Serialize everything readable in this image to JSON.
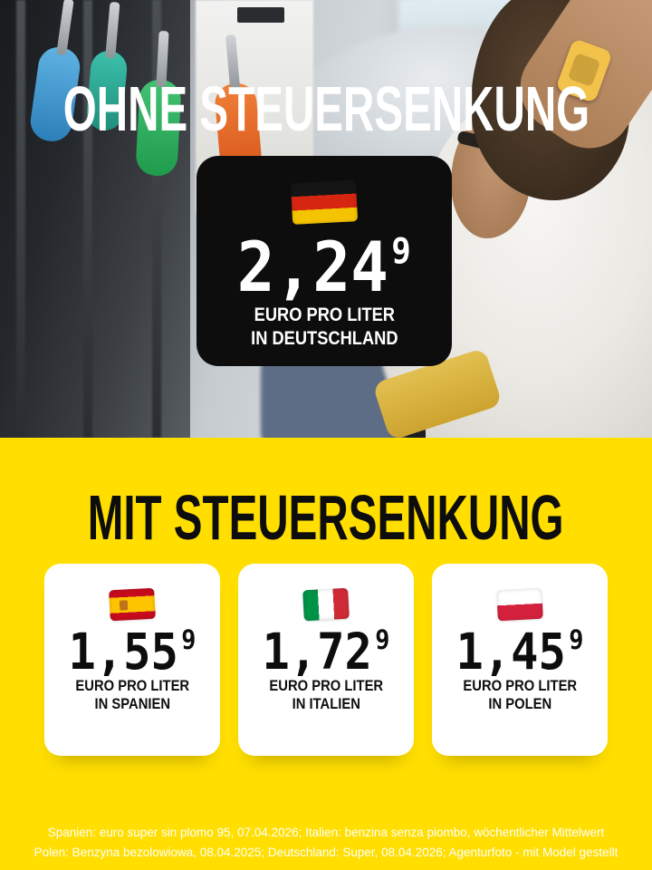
{
  "top": {
    "title": "OHNE STEUERSENKUNG",
    "card": {
      "flag_icon": "german-flag-icon",
      "price": "2,24",
      "price_superscript": "9",
      "unit_line1": "EURO PRO LITER",
      "unit_line2": "IN DEUTSCHLAND"
    }
  },
  "bottom": {
    "title": "MIT STEUERSENKUNG",
    "cards": [
      {
        "flag_icon": "spanish-flag-icon",
        "price": "1,55",
        "price_superscript": "9",
        "unit_line1": "EURO PRO LITER",
        "unit_line2": "IN SPANIEN"
      },
      {
        "flag_icon": "italian-flag-icon",
        "price": "1,72",
        "price_superscript": "9",
        "unit_line1": "EURO PRO LITER",
        "unit_line2": "IN ITALIEN"
      },
      {
        "flag_icon": "polish-flag-icon",
        "price": "1,45",
        "price_superscript": "9",
        "unit_line1": "EURO PRO LITER",
        "unit_line2": "IN POLEN"
      }
    ]
  },
  "footer": {
    "line1": "Spanien: euro super sin plomo 95, 07.04.2026; Italien: benzina senza piombo, wöchentlicher Mittelwert",
    "line2": "Polen: Benzyna bezolowiowa, 08.04.2025; Deutschland: Super, 08.04.2026; Agenturfoto - mit Model gestellt"
  },
  "colors": {
    "background_yellow": "#FFDE00",
    "card_black": "#0D0D0D",
    "card_white": "#FFFFFF",
    "headline_white": "#FFFFFF",
    "headline_black": "#0D0D0D",
    "footer_text": "#FFFFFF"
  }
}
